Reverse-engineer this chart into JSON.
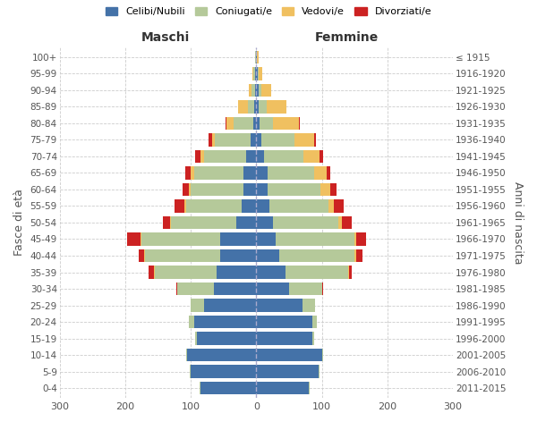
{
  "age_groups": [
    "0-4",
    "5-9",
    "10-14",
    "15-19",
    "20-24",
    "25-29",
    "30-34",
    "35-39",
    "40-44",
    "45-49",
    "50-54",
    "55-59",
    "60-64",
    "65-69",
    "70-74",
    "75-79",
    "80-84",
    "85-89",
    "90-94",
    "95-99",
    "100+"
  ],
  "birth_years": [
    "2011-2015",
    "2006-2010",
    "2001-2005",
    "1996-2000",
    "1991-1995",
    "1986-1990",
    "1981-1985",
    "1976-1980",
    "1971-1975",
    "1966-1970",
    "1961-1965",
    "1956-1960",
    "1951-1955",
    "1946-1950",
    "1941-1945",
    "1936-1940",
    "1931-1935",
    "1926-1930",
    "1921-1925",
    "1916-1920",
    "≤ 1915"
  ],
  "colors": {
    "celibi": "#4472a8",
    "coniugati": "#b5c99a",
    "vedovi": "#f0c060",
    "divorziati": "#cc2222"
  },
  "maschi": {
    "celibi": [
      85,
      100,
      105,
      90,
      95,
      80,
      65,
      60,
      55,
      55,
      30,
      22,
      20,
      20,
      15,
      8,
      5,
      3,
      2,
      2,
      1
    ],
    "coniugati": [
      1,
      2,
      2,
      3,
      8,
      20,
      55,
      95,
      115,
      120,
      100,
      85,
      80,
      75,
      65,
      55,
      30,
      10,
      5,
      2,
      1
    ],
    "vedovi": [
      0,
      0,
      0,
      0,
      0,
      0,
      0,
      1,
      1,
      2,
      2,
      2,
      3,
      5,
      5,
      5,
      10,
      15,
      5,
      2,
      0
    ],
    "divorziati": [
      0,
      0,
      0,
      0,
      0,
      0,
      2,
      8,
      8,
      20,
      10,
      15,
      10,
      8,
      8,
      5,
      2,
      0,
      0,
      0,
      0
    ]
  },
  "femmine": {
    "nubili": [
      80,
      95,
      100,
      85,
      85,
      70,
      50,
      45,
      35,
      30,
      25,
      20,
      18,
      18,
      12,
      8,
      5,
      4,
      3,
      2,
      1
    ],
    "coniugate": [
      1,
      2,
      2,
      3,
      8,
      20,
      50,
      95,
      115,
      120,
      100,
      90,
      80,
      70,
      60,
      50,
      20,
      12,
      5,
      2,
      0
    ],
    "vedove": [
      0,
      0,
      0,
      0,
      0,
      0,
      0,
      1,
      2,
      3,
      5,
      8,
      15,
      20,
      25,
      30,
      40,
      30,
      15,
      5,
      2
    ],
    "divorziate": [
      0,
      0,
      0,
      0,
      0,
      0,
      2,
      5,
      10,
      15,
      15,
      15,
      10,
      5,
      5,
      3,
      2,
      0,
      0,
      0,
      0
    ]
  },
  "xlabel_left": "Maschi",
  "xlabel_right": "Femmine",
  "ylabel_left": "Fasce di età",
  "ylabel_right": "Anni di nascita",
  "xlim": 300,
  "legend_labels": [
    "Celibi/Nubili",
    "Coniugati/e",
    "Vedovi/e",
    "Divorziati/e"
  ],
  "bg_color": "#ffffff",
  "grid_color": "#cccccc"
}
